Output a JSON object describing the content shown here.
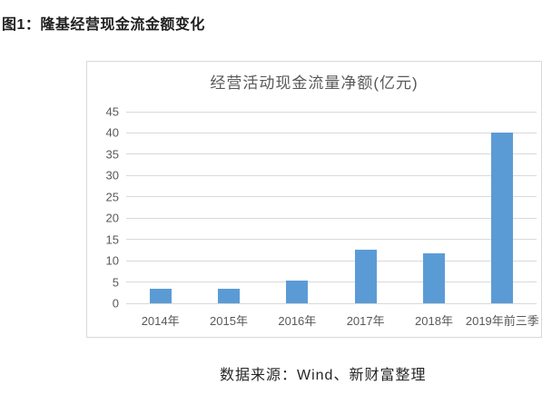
{
  "page": {
    "heading": "图1：隆基经营现金流金额变化",
    "caption": "数据来源：Wind、新财富整理"
  },
  "colors": {
    "bar": "#5B9BD5",
    "gridline": "#D9D9D9",
    "chart_border": "#D9D9D9",
    "axis_label": "#595959",
    "chart_title": "#595959",
    "heading_text": "#1F1F1F",
    "caption_text": "#262626",
    "background": "#FFFFFF"
  },
  "chart_data": {
    "type": "bar",
    "title": "经营活动现金流量净额(亿元)",
    "categories": [
      "2014年",
      "2015年",
      "2016年",
      "2017年",
      "2018年",
      "2019年前三季"
    ],
    "values": [
      3.5,
      3.5,
      5.4,
      12.5,
      11.7,
      40
    ],
    "xlabel": "",
    "ylabel": "",
    "ylim": [
      0,
      45
    ],
    "ytick_step": 5,
    "grid": "horizontal",
    "legend": "none"
  }
}
